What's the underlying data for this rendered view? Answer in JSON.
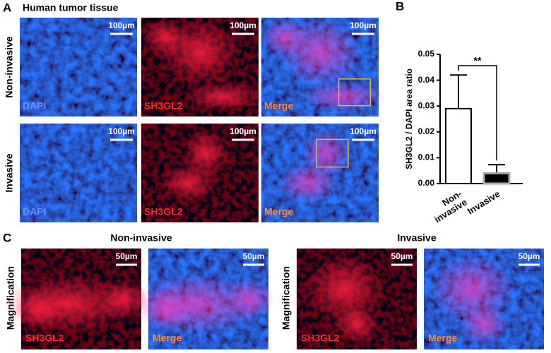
{
  "panel_a": {
    "label": "A",
    "title": "Human tumor tissue",
    "rows": [
      "Non-invasive",
      "Invasive"
    ],
    "channels": [
      "DAPI",
      "SH3GL2",
      "Merge"
    ],
    "scale_bar": "100µm"
  },
  "chart_data": {
    "type": "bar",
    "label": "B",
    "ylabel": "SH3GL2 / DAPI area ratio",
    "categories": [
      "Non-\ninvasive",
      "Invasive"
    ],
    "values": [
      0.029,
      0.004
    ],
    "errors": [
      0.013,
      0.0033
    ],
    "colors": [
      "#ffffff",
      "#000000"
    ],
    "ylim": [
      0,
      0.05
    ],
    "yticks": [
      {
        "value": 0,
        "label": "0.00"
      },
      0.01,
      0.02,
      0.03,
      0.04,
      0.05
    ],
    "significance": "**"
  },
  "panel_c": {
    "label": "C",
    "groups": [
      "Non-invasive",
      "Invasive"
    ],
    "row_label": "Magnification",
    "channels": [
      "SH3GL2",
      "Merge"
    ],
    "scale_bar": "50µm"
  }
}
